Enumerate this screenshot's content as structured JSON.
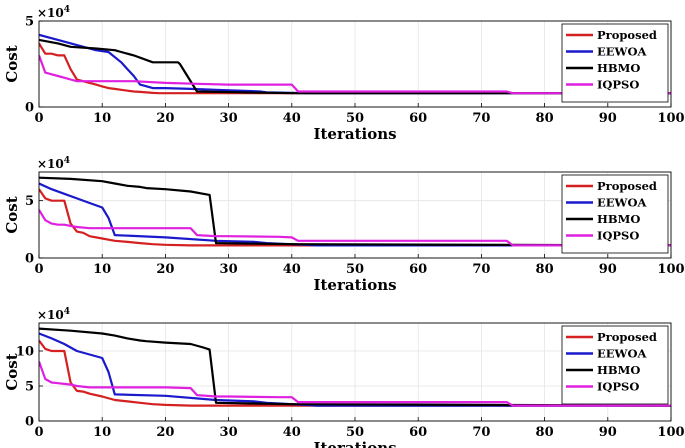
{
  "chart_data": [
    {
      "type": "line",
      "xlabel": "Iterations",
      "ylabel": "Cost",
      "multiplier_label": "×10",
      "multiplier_exp": "4",
      "xlim": [
        0,
        100
      ],
      "ylim": [
        0,
        5
      ],
      "xticks": [
        "0",
        "10",
        "20",
        "30",
        "40",
        "50",
        "60",
        "70",
        "80",
        "90",
        "100"
      ],
      "yticks": [
        "0",
        "5"
      ],
      "ytick_values": [
        0,
        5
      ],
      "grid": true,
      "legend_position": "top-right",
      "series": [
        {
          "name": "Proposed",
          "color": "#d42020",
          "x": [
            0,
            1,
            2,
            3,
            4,
            5,
            6,
            7,
            8,
            9,
            10,
            11,
            12,
            13,
            14,
            15,
            16,
            17,
            18,
            19,
            20,
            100
          ],
          "y": [
            3.7,
            3.1,
            3.1,
            3.0,
            3.0,
            2.2,
            1.6,
            1.5,
            1.4,
            1.3,
            1.2,
            1.1,
            1.05,
            1.0,
            0.95,
            0.9,
            0.88,
            0.85,
            0.82,
            0.8,
            0.8,
            0.8
          ]
        },
        {
          "name": "EEWOA",
          "color": "#1a1acc",
          "x": [
            0,
            3,
            6,
            9,
            11,
            13,
            14,
            15,
            16,
            18,
            20,
            24,
            28,
            32,
            35,
            36,
            40,
            43,
            100
          ],
          "y": [
            4.2,
            3.9,
            3.6,
            3.3,
            3.2,
            2.6,
            2.2,
            1.8,
            1.3,
            1.1,
            1.1,
            1.05,
            1.0,
            0.95,
            0.9,
            0.85,
            0.82,
            0.8,
            0.8
          ]
        },
        {
          "name": "HBMO",
          "color": "#000000",
          "x": [
            0,
            3,
            5,
            9,
            12,
            13,
            15,
            18,
            22,
            22.3,
            25,
            40,
            100
          ],
          "y": [
            3.9,
            3.7,
            3.5,
            3.4,
            3.3,
            3.2,
            3.0,
            2.6,
            2.6,
            2.5,
            0.9,
            0.8,
            0.8
          ]
        },
        {
          "name": "IQPSO",
          "color": "#e020e0",
          "x": [
            0,
            1,
            2,
            3,
            5,
            6,
            10,
            15,
            20,
            25,
            30,
            40,
            41,
            74,
            75,
            100
          ],
          "y": [
            3.0,
            2.0,
            1.9,
            1.8,
            1.6,
            1.5,
            1.5,
            1.5,
            1.4,
            1.35,
            1.3,
            1.3,
            0.9,
            0.9,
            0.8,
            0.8
          ]
        }
      ]
    },
    {
      "type": "line",
      "xlabel": "Iterations",
      "ylabel": "Cost",
      "multiplier_label": "×10",
      "multiplier_exp": "4",
      "xlim": [
        0,
        100
      ],
      "ylim": [
        0,
        7.5
      ],
      "xticks": [
        "0",
        "10",
        "20",
        "30",
        "40",
        "50",
        "60",
        "70",
        "80",
        "90",
        "100"
      ],
      "yticks": [
        "0",
        "5"
      ],
      "ytick_values": [
        0,
        5
      ],
      "grid": true,
      "legend_position": "top-right",
      "series": [
        {
          "name": "Proposed",
          "color": "#d42020",
          "x": [
            0,
            1,
            2,
            3,
            4,
            5,
            6,
            7,
            8,
            10,
            12,
            14,
            16,
            18,
            20,
            24,
            100
          ],
          "y": [
            6.0,
            5.2,
            5.0,
            5.0,
            5.0,
            3.0,
            2.3,
            2.2,
            1.9,
            1.7,
            1.5,
            1.4,
            1.3,
            1.2,
            1.15,
            1.1,
            1.1
          ]
        },
        {
          "name": "EEWOA",
          "color": "#1a1acc",
          "x": [
            0,
            2,
            4,
            6,
            8,
            10,
            11,
            12,
            20,
            28,
            34,
            36,
            38,
            40,
            42,
            44,
            100
          ],
          "y": [
            6.5,
            6.0,
            5.6,
            5.2,
            4.8,
            4.4,
            3.5,
            2.0,
            1.8,
            1.5,
            1.4,
            1.3,
            1.25,
            1.2,
            1.15,
            1.1,
            1.1
          ]
        },
        {
          "name": "HBMO",
          "color": "#000000",
          "x": [
            0,
            5,
            10,
            12,
            14,
            16,
            17,
            20,
            24,
            26,
            27,
            28,
            40,
            100
          ],
          "y": [
            7.0,
            6.9,
            6.7,
            6.5,
            6.3,
            6.2,
            6.1,
            6.0,
            5.8,
            5.6,
            5.5,
            1.3,
            1.2,
            1.1
          ]
        },
        {
          "name": "IQPSO",
          "color": "#e020e0",
          "x": [
            0,
            1,
            2,
            3,
            4,
            5,
            6,
            8,
            10,
            15,
            20,
            24,
            25,
            28,
            30,
            38,
            40,
            41,
            74,
            75,
            100
          ],
          "y": [
            4.2,
            3.3,
            3.0,
            2.9,
            2.9,
            2.8,
            2.7,
            2.6,
            2.6,
            2.6,
            2.6,
            2.6,
            2.0,
            1.9,
            1.9,
            1.85,
            1.8,
            1.5,
            1.5,
            1.1,
            1.1
          ]
        }
      ]
    },
    {
      "type": "line",
      "xlabel": "Iterations",
      "ylabel": "Cost",
      "multiplier_label": "×10",
      "multiplier_exp": "4",
      "xlim": [
        0,
        100
      ],
      "ylim": [
        0,
        14
      ],
      "xticks": [
        "0",
        "10",
        "20",
        "30",
        "40",
        "50",
        "60",
        "70",
        "80",
        "90",
        "100"
      ],
      "yticks": [
        "0",
        "5",
        "10"
      ],
      "ytick_values": [
        0,
        5,
        10
      ],
      "grid": true,
      "legend_position": "top-right",
      "series": [
        {
          "name": "Proposed",
          "color": "#d42020",
          "x": [
            0,
            1,
            2,
            3,
            4,
            5,
            6,
            7,
            8,
            10,
            12,
            14,
            16,
            18,
            20,
            24,
            100
          ],
          "y": [
            11.5,
            10.3,
            10.0,
            10.0,
            10.0,
            5.5,
            4.3,
            4.2,
            3.9,
            3.5,
            3.0,
            2.8,
            2.6,
            2.4,
            2.3,
            2.2,
            2.2
          ]
        },
        {
          "name": "EEWOA",
          "color": "#1a1acc",
          "x": [
            0,
            2,
            4,
            6,
            8,
            10,
            11,
            12,
            20,
            28,
            34,
            36,
            38,
            40,
            42,
            44,
            100
          ],
          "y": [
            12.5,
            11.8,
            11.0,
            10.0,
            9.5,
            9.0,
            7.0,
            3.8,
            3.6,
            3.0,
            2.8,
            2.6,
            2.5,
            2.4,
            2.3,
            2.2,
            2.2
          ]
        },
        {
          "name": "HBMO",
          "color": "#000000",
          "x": [
            0,
            5,
            10,
            12,
            14,
            16,
            17,
            20,
            24,
            26,
            27,
            28,
            40,
            100
          ],
          "y": [
            13.2,
            12.9,
            12.5,
            12.2,
            11.8,
            11.5,
            11.4,
            11.2,
            11.0,
            10.5,
            10.2,
            2.6,
            2.4,
            2.2
          ]
        },
        {
          "name": "IQPSO",
          "color": "#e020e0",
          "x": [
            0,
            1,
            2,
            3,
            4,
            5,
            6,
            8,
            10,
            15,
            20,
            24,
            25,
            28,
            30,
            38,
            40,
            41,
            74,
            75,
            100
          ],
          "y": [
            8.5,
            6.0,
            5.5,
            5.4,
            5.3,
            5.2,
            5.0,
            4.8,
            4.8,
            4.8,
            4.8,
            4.7,
            3.7,
            3.5,
            3.5,
            3.4,
            3.4,
            2.7,
            2.7,
            2.2,
            2.2
          ]
        }
      ]
    }
  ]
}
